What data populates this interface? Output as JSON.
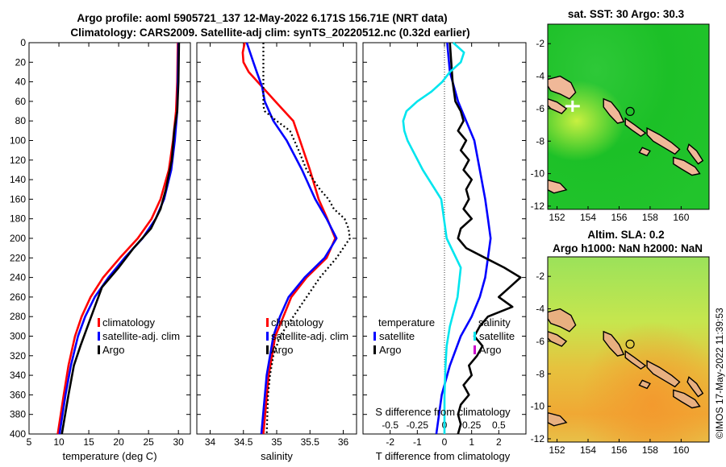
{
  "figure": {
    "title_line1": "Argo profile: aoml 5905721_137 12-May-2022 6.171S 156.71E (NRT data)",
    "title_line2": "Climatology: CARS2009. Satellite-adj clim: synTS_20220512.nc (0.32d earlier)",
    "timestamp": "©IMOS 17-May-2022 11:39:53"
  },
  "colors": {
    "climatology": "#ff0000",
    "satellite": "#0000ff",
    "argo": "#000000",
    "sal_satellite": "#00e5ee",
    "sal_marker": "#cc00cc",
    "land": "#f0b898"
  },
  "chart_data": [
    {
      "type": "line",
      "name": "temperature-profile",
      "xlabel": "temperature (deg C)",
      "ylabel": "",
      "xlim": [
        5,
        32
      ],
      "ylim": [
        400,
        0
      ],
      "x_ticks": [
        "5",
        "10",
        "15",
        "20",
        "25",
        "30"
      ],
      "x_tick_values": [
        5,
        10,
        15,
        20,
        25,
        30
      ],
      "y_ticks": [
        "0",
        "20",
        "40",
        "60",
        "80",
        "100",
        "120",
        "140",
        "160",
        "180",
        "200",
        "220",
        "240",
        "260",
        "280",
        "300",
        "320",
        "340",
        "360",
        "380",
        "400"
      ],
      "y_tick_values": [
        0,
        20,
        40,
        60,
        80,
        100,
        120,
        140,
        160,
        180,
        200,
        220,
        240,
        260,
        280,
        300,
        320,
        340,
        360,
        380,
        400
      ],
      "legend": [
        "climatology",
        "satellite-adj. clim",
        "Argo"
      ],
      "series": [
        {
          "name": "climatology",
          "color": "red",
          "depth": [
            0,
            40,
            70,
            100,
            130,
            160,
            180,
            200,
            220,
            240,
            260,
            280,
            300,
            330,
            360,
            400
          ],
          "values": [
            29.9,
            29.8,
            29.6,
            29.1,
            28.4,
            27.0,
            25.5,
            23.2,
            20.2,
            17.4,
            15.3,
            13.8,
            12.7,
            11.6,
            10.8,
            9.8
          ]
        },
        {
          "name": "satellite-adj. clim",
          "color": "blue",
          "depth": [
            0,
            40,
            70,
            100,
            130,
            160,
            180,
            200,
            220,
            240,
            260,
            280,
            300,
            330,
            360,
            400
          ],
          "values": [
            30.0,
            29.9,
            29.8,
            29.4,
            28.8,
            27.6,
            26.2,
            24.0,
            21.0,
            18.3,
            16.0,
            14.4,
            13.2,
            12.0,
            11.1,
            10.1
          ]
        },
        {
          "name": "Argo",
          "color": "black",
          "depth": [
            0,
            40,
            70,
            90,
            120,
            150,
            170,
            190,
            210,
            230,
            250,
            270,
            290,
            310,
            330,
            360,
            400
          ],
          "values": [
            30.1,
            30.0,
            29.8,
            29.3,
            28.9,
            27.9,
            27.0,
            25.4,
            22.5,
            20.0,
            17.2,
            16.0,
            14.8,
            13.6,
            12.5,
            11.6,
            10.5
          ]
        }
      ]
    },
    {
      "type": "line",
      "name": "salinity-profile",
      "xlabel": "salinity",
      "xlim": [
        33.8,
        36.2
      ],
      "ylim": [
        400,
        0
      ],
      "x_ticks": [
        "34",
        "34.5",
        "35",
        "35.5",
        "36"
      ],
      "x_tick_values": [
        34,
        34.5,
        35,
        35.5,
        36
      ],
      "legend": [
        "climatology",
        "satellite-adj. clim",
        "Argo"
      ],
      "series": [
        {
          "name": "climatology",
          "color": "red",
          "depth": [
            0,
            10,
            20,
            30,
            45,
            60,
            80,
            100,
            130,
            160,
            180,
            200,
            220,
            240,
            260,
            280,
            300,
            340,
            400
          ],
          "values": [
            34.52,
            34.49,
            34.5,
            34.58,
            34.78,
            34.98,
            35.25,
            35.35,
            35.5,
            35.63,
            35.76,
            35.88,
            35.75,
            35.45,
            35.22,
            35.1,
            34.98,
            34.88,
            34.8
          ]
        },
        {
          "name": "satellite-adj. clim",
          "color": "blue",
          "depth": [
            0,
            10,
            20,
            30,
            45,
            60,
            80,
            100,
            130,
            160,
            180,
            200,
            220,
            240,
            260,
            280,
            300,
            340,
            400
          ],
          "values": [
            34.55,
            34.6,
            34.65,
            34.7,
            34.78,
            34.82,
            34.95,
            35.15,
            35.38,
            35.58,
            35.75,
            35.9,
            35.72,
            35.42,
            35.18,
            35.05,
            34.95,
            34.85,
            34.77
          ]
        },
        {
          "name": "Argo",
          "color": "black",
          "depth": [
            0,
            20,
            40,
            55,
            65,
            70,
            80,
            90,
            110,
            130,
            150,
            160,
            170,
            180,
            190,
            200,
            210,
            220,
            240,
            260,
            280,
            300,
            320,
            340,
            360,
            400
          ],
          "values": [
            34.8,
            34.8,
            34.8,
            34.8,
            34.8,
            34.82,
            35.0,
            35.2,
            35.33,
            35.45,
            35.65,
            35.78,
            35.86,
            36.02,
            36.08,
            36.1,
            36.0,
            35.9,
            35.65,
            35.45,
            35.25,
            35.05,
            34.95,
            34.9,
            34.87,
            34.85
          ]
        }
      ]
    },
    {
      "type": "line",
      "name": "difference-profile",
      "xlabel": "T difference from climatology",
      "x2label": "S difference from climatology",
      "xlim": [
        -3,
        3
      ],
      "x2lim": [
        -0.75,
        0.75
      ],
      "ylim": [
        400,
        0
      ],
      "x_ticks": [
        "-2",
        "-1",
        "0",
        "1",
        "2"
      ],
      "x_tick_values": [
        -2,
        -1,
        0,
        1,
        2
      ],
      "x2_ticks": [
        "-0.5",
        "-0.25",
        "0",
        "0.25",
        "0.5"
      ],
      "x2_tick_values": [
        -0.5,
        -0.25,
        0,
        0.25,
        0.5
      ],
      "legend": [
        "temperature",
        "satellite",
        "Argo",
        "salinity",
        "satellite",
        "Argo"
      ],
      "series": [
        {
          "name": "T satellite",
          "color": "blue",
          "depth": [
            0,
            30,
            60,
            80,
            100,
            130,
            160,
            180,
            200,
            220,
            240,
            260,
            280,
            300,
            330,
            360,
            400
          ],
          "values": [
            0.1,
            0.2,
            0.5,
            0.8,
            1.1,
            1.3,
            1.5,
            1.6,
            1.7,
            1.6,
            1.5,
            1.3,
            1.0,
            0.6,
            0.2,
            -0.1,
            -0.3
          ]
        },
        {
          "name": "T Argo",
          "color": "black",
          "depth": [
            0,
            40,
            60,
            70,
            80,
            90,
            100,
            110,
            120,
            130,
            140,
            150,
            160,
            170,
            180,
            190,
            200,
            210,
            220,
            230,
            240,
            250,
            260,
            270,
            280,
            290,
            300,
            310,
            320,
            330,
            340,
            350,
            360,
            370,
            380,
            390,
            400
          ],
          "values": [
            0.2,
            0.3,
            0.4,
            0.6,
            0.7,
            0.5,
            0.8,
            0.6,
            0.9,
            0.7,
            1.0,
            0.8,
            0.9,
            0.7,
            1.0,
            0.6,
            0.5,
            0.8,
            1.5,
            2.2,
            2.8,
            2.4,
            2.0,
            2.5,
            1.6,
            1.3,
            1.1,
            1.4,
            1.2,
            0.9,
            1.0,
            0.7,
            0.9,
            0.6,
            0.5,
            0.6,
            0.5
          ]
        },
        {
          "name": "S satellite",
          "color": "cyan",
          "depth": [
            0,
            10,
            20,
            30,
            40,
            50,
            60,
            70,
            80,
            90,
            100,
            130,
            160,
            200,
            230,
            260,
            290,
            310,
            330,
            360,
            400
          ],
          "values": [
            0.08,
            0.18,
            0.15,
            0.05,
            -0.02,
            -0.12,
            -0.25,
            -0.35,
            -0.38,
            -0.37,
            -0.34,
            -0.2,
            -0.03,
            0.02,
            0.15,
            0.12,
            0.05,
            0.02,
            0.01,
            0.0,
            0.0
          ]
        }
      ]
    },
    {
      "type": "heatmap",
      "name": "sat-sst-map",
      "title": "sat. SST: 30 Argo: 30.3",
      "x_ticks": [
        "152",
        "154",
        "156",
        "158",
        "160"
      ],
      "x_tick_values": [
        152,
        154,
        156,
        158,
        160
      ],
      "y_ticks": [
        "-2",
        "-4",
        "-6",
        "-8",
        "-10",
        "-12"
      ],
      "y_tick_values": [
        -2,
        -4,
        -6,
        -8,
        -10,
        -12
      ],
      "xlim": [
        151.4,
        161.8
      ],
      "ylim": [
        -12.2,
        -0.8
      ],
      "profile_marker": [
        156.71,
        -6.171
      ]
    },
    {
      "type": "heatmap",
      "name": "altim-sla-map",
      "title_line1": "Altim. SLA: 0.2",
      "title_line2": "Argo h1000: NaN h2000: NaN",
      "x_ticks": [
        "152",
        "154",
        "156",
        "158",
        "160"
      ],
      "x_tick_values": [
        152,
        154,
        156,
        158,
        160
      ],
      "y_ticks": [
        "-2",
        "-4",
        "-6",
        "-8",
        "-10",
        "-12"
      ],
      "y_tick_values": [
        -2,
        -4,
        -6,
        -8,
        -10,
        -12
      ],
      "xlim": [
        151.4,
        161.8
      ],
      "ylim": [
        -12.2,
        -0.8
      ],
      "profile_marker": [
        156.71,
        -6.171
      ]
    }
  ]
}
